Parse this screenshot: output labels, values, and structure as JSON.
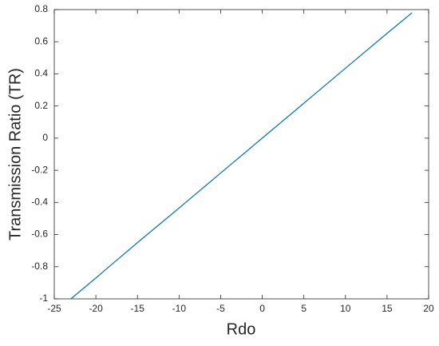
{
  "chart_data": {
    "type": "line",
    "x_label": "Rdo",
    "y_label": "Transmission Ratio (TR)",
    "xlim": [
      -25,
      20
    ],
    "xticks": [
      -25,
      -20,
      -15,
      -10,
      -5,
      0,
      5,
      10,
      15,
      20
    ],
    "ylim": [
      -1,
      0.8
    ],
    "yticks": [
      -1,
      -0.8,
      -0.6,
      -0.4,
      -0.2,
      0,
      0.2,
      0.4,
      0.6,
      0.8
    ],
    "x": [
      -23,
      -20,
      -15,
      -10,
      -5,
      0,
      5,
      10,
      15,
      18
    ],
    "series": [
      {
        "color": "#0072bd",
        "values": [
          -1,
          -0.87,
          -0.65,
          -0.435,
          -0.217,
          0,
          0.217,
          0.435,
          0.652,
          0.78
        ]
      }
    ]
  }
}
